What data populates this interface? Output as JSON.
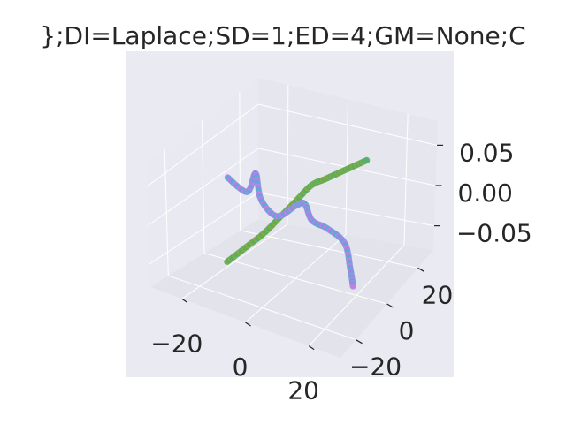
{
  "chart_data": {
    "type": "scatter",
    "projection": "3d",
    "title": "};DI=Laplace;SD=1;ED=4;GM=None;C",
    "xlabel": "",
    "ylabel": "",
    "zlabel": "",
    "x_ticks": [
      "−20",
      "0",
      "20"
    ],
    "y_ticks": [
      "−20",
      "0",
      "20"
    ],
    "z_ticks": [
      "−0.05",
      "0.00",
      "0.05"
    ],
    "xlim": [
      -30,
      30
    ],
    "ylim": [
      -30,
      30
    ],
    "zlim": [
      -0.08,
      0.08
    ],
    "grid": true,
    "legend": "none",
    "colors": {
      "pane": "#eaeaf2",
      "grid": "#ffffff",
      "text": "#262626",
      "green_series": [
        "#6aa84f",
        "#8fae3b",
        "#4daf72"
      ],
      "purple_series": [
        "#c77ee8",
        "#8c8ce6",
        "#4eb3c9"
      ]
    },
    "series": [
      {
        "x": [
          -19,
          -14,
          -9,
          -5,
          -1,
          3,
          7,
          11,
          15,
          19
        ],
        "y": [
          -6,
          -4,
          -2,
          0,
          2,
          4,
          5,
          6,
          7,
          8
        ],
        "z": [
          -0.07,
          -0.05,
          -0.03,
          -0.01,
          0.01,
          0.03,
          0.04,
          0.05,
          0.06,
          0.07
        ]
      },
      {
        "x": [
          -22,
          -18,
          -14,
          -10,
          -6,
          -2,
          2,
          6,
          10,
          14,
          18,
          21
        ],
        "y": [
          0,
          4,
          2,
          -2,
          0,
          4,
          2,
          -1,
          1,
          4,
          0,
          -4
        ],
        "z": [
          0.02,
          0.0,
          0.03,
          0.01,
          -0.01,
          0.0,
          0.01,
          0.0,
          -0.01,
          -0.03,
          -0.05,
          -0.06
        ]
      }
    ]
  }
}
